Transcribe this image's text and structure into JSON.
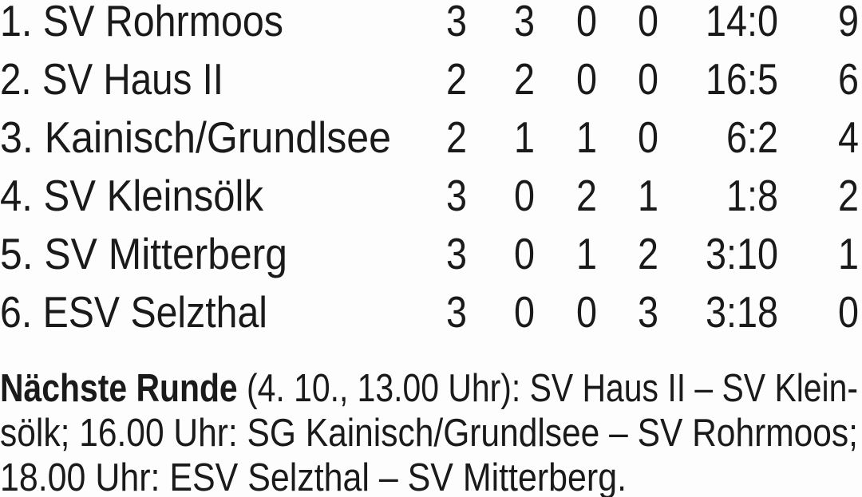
{
  "table": {
    "rows": [
      {
        "rank": "1.",
        "team": "SV Rohrmoos",
        "played": "3",
        "won": "3",
        "drawn": "0",
        "lost": "0",
        "goals": "14:0",
        "points": "9"
      },
      {
        "rank": "2.",
        "team": "SV Haus II",
        "played": "2",
        "won": "2",
        "drawn": "0",
        "lost": "0",
        "goals": "16:5",
        "points": "6"
      },
      {
        "rank": "3.",
        "team": "Kainisch/Grundlsee",
        "played": "2",
        "won": "1",
        "drawn": "1",
        "lost": "0",
        "goals": "6:2",
        "points": "4"
      },
      {
        "rank": "4.",
        "team": "SV Kleinsölk",
        "played": "3",
        "won": "0",
        "drawn": "2",
        "lost": "1",
        "goals": "1:8",
        "points": "2"
      },
      {
        "rank": "5.",
        "team": "SV Mitterberg",
        "played": "3",
        "won": "0",
        "drawn": "1",
        "lost": "2",
        "goals": "3:10",
        "points": "1"
      },
      {
        "rank": "6.",
        "team": "ESV Selzthal",
        "played": "3",
        "won": "0",
        "drawn": "0",
        "lost": "3",
        "goals": "3:18",
        "points": "0"
      }
    ]
  },
  "next_round": {
    "heading": "Nächste Runde",
    "line1_rest": " (4. 10., 13.00 Uhr): SV Haus II – SV Klein-",
    "line2": "sölk; 16.00 Uhr: SG Kainisch/Grundlsee – SV Rohrmoos;",
    "line3": "18.00 Uhr: ESV Selzthal – SV Mitterberg."
  }
}
